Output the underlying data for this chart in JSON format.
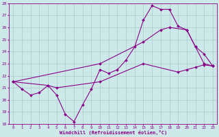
{
  "xlabel": "Windchill (Refroidissement éolien,°C)",
  "xlim": [
    -0.5,
    23.5
  ],
  "ylim": [
    18,
    28
  ],
  "yticks": [
    18,
    19,
    20,
    21,
    22,
    23,
    24,
    25,
    26,
    27,
    28
  ],
  "xticks": [
    0,
    1,
    2,
    3,
    4,
    5,
    6,
    7,
    8,
    9,
    10,
    11,
    12,
    13,
    14,
    15,
    16,
    17,
    18,
    19,
    20,
    21,
    22,
    23
  ],
  "background_color": "#cce8e8",
  "line_color": "#880088",
  "grid_color": "#aacccc",
  "line1_x": [
    0,
    1,
    2,
    3,
    4,
    5,
    6,
    7,
    8,
    9,
    10,
    11,
    12,
    13,
    14,
    15,
    16,
    17,
    18,
    19,
    20,
    21,
    22,
    23
  ],
  "line1_y": [
    21.5,
    20.9,
    20.4,
    20.6,
    21.2,
    20.4,
    18.8,
    18.2,
    19.6,
    20.9,
    22.5,
    22.2,
    22.5,
    23.3,
    24.4,
    26.6,
    27.8,
    27.5,
    27.5,
    26.1,
    25.8,
    24.4,
    23.0,
    22.8
  ],
  "line2_x": [
    0,
    4,
    5,
    10,
    15,
    19,
    20,
    21,
    22,
    23
  ],
  "line2_y": [
    21.5,
    21.2,
    21.0,
    21.5,
    23.0,
    22.3,
    22.5,
    22.7,
    22.9,
    22.8
  ],
  "line3_x": [
    0,
    10,
    15,
    17,
    18,
    20,
    21,
    22,
    23
  ],
  "line3_y": [
    21.5,
    23.0,
    24.8,
    25.8,
    26.0,
    25.8,
    24.4,
    23.8,
    22.8
  ]
}
